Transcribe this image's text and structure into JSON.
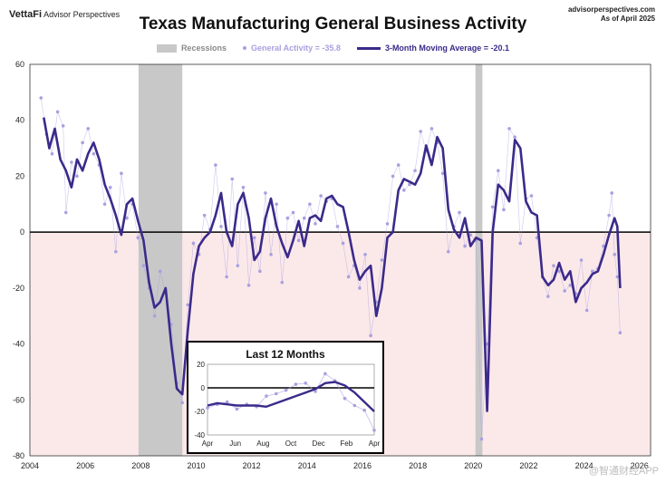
{
  "header": {
    "brand_name": "VettaFi",
    "brand_sub": "Advisor Perspectives",
    "source_line1": "advisorperspectives.com",
    "source_line2": "As of April 2025"
  },
  "watermark": "@智通财经APP",
  "colors": {
    "recession": "#c8c8c8",
    "line": "#3b2a8a",
    "dots": "#a9a0df",
    "negative_bg": "#fbe9ea"
  },
  "chart_data": {
    "type": "line",
    "title": "Texas Manufacturing General Business Activity",
    "legend": {
      "recession_label": "Recessions",
      "general_label": "General Activity = -35.8",
      "moving_avg_label": "3-Month Moving Average = -20.1"
    },
    "xlim": [
      2004,
      2026.4
    ],
    "ylim": [
      -80,
      60
    ],
    "x_ticks": [
      "2004",
      "2006",
      "2008",
      "2010",
      "2012",
      "2014",
      "2016",
      "2018",
      "2020",
      "2022",
      "2024",
      "2026"
    ],
    "y_ticks": [
      "60",
      "40",
      "20",
      "0",
      "-20",
      "-40",
      "-60",
      "-80"
    ],
    "recessions": [
      [
        2007.92,
        2009.5
      ],
      [
        2020.08,
        2020.33
      ]
    ],
    "moving_average": [
      [
        2004.5,
        41
      ],
      [
        2004.7,
        30
      ],
      [
        2004.9,
        37
      ],
      [
        2005.1,
        26
      ],
      [
        2005.3,
        22
      ],
      [
        2005.5,
        16
      ],
      [
        2005.7,
        26
      ],
      [
        2005.9,
        22
      ],
      [
        2006.1,
        28
      ],
      [
        2006.3,
        32
      ],
      [
        2006.5,
        26
      ],
      [
        2006.7,
        17
      ],
      [
        2006.9,
        12
      ],
      [
        2007.1,
        6
      ],
      [
        2007.3,
        -1
      ],
      [
        2007.5,
        10
      ],
      [
        2007.7,
        12
      ],
      [
        2007.9,
        4
      ],
      [
        2008.1,
        -3
      ],
      [
        2008.3,
        -18
      ],
      [
        2008.5,
        -27
      ],
      [
        2008.7,
        -25
      ],
      [
        2008.9,
        -20
      ],
      [
        2009.1,
        -40
      ],
      [
        2009.3,
        -56
      ],
      [
        2009.5,
        -58
      ],
      [
        2009.7,
        -35
      ],
      [
        2009.9,
        -15
      ],
      [
        2010.1,
        -5
      ],
      [
        2010.3,
        -2
      ],
      [
        2010.5,
        0
      ],
      [
        2010.7,
        6
      ],
      [
        2010.9,
        14
      ],
      [
        2011.1,
        0
      ],
      [
        2011.3,
        -5
      ],
      [
        2011.5,
        10
      ],
      [
        2011.7,
        14
      ],
      [
        2011.9,
        5
      ],
      [
        2012.1,
        -10
      ],
      [
        2012.3,
        -7
      ],
      [
        2012.5,
        5
      ],
      [
        2012.7,
        12
      ],
      [
        2012.9,
        2
      ],
      [
        2013.1,
        -4
      ],
      [
        2013.3,
        -9
      ],
      [
        2013.5,
        -3
      ],
      [
        2013.7,
        4
      ],
      [
        2013.9,
        -5
      ],
      [
        2014.1,
        5
      ],
      [
        2014.3,
        6
      ],
      [
        2014.5,
        4
      ],
      [
        2014.7,
        12
      ],
      [
        2014.9,
        13
      ],
      [
        2015.1,
        10
      ],
      [
        2015.3,
        9
      ],
      [
        2015.5,
        0
      ],
      [
        2015.7,
        -10
      ],
      [
        2015.9,
        -17
      ],
      [
        2016.1,
        -14
      ],
      [
        2016.3,
        -12
      ],
      [
        2016.5,
        -30
      ],
      [
        2016.7,
        -20
      ],
      [
        2016.9,
        -2
      ],
      [
        2017.1,
        0
      ],
      [
        2017.3,
        15
      ],
      [
        2017.5,
        19
      ],
      [
        2017.7,
        18
      ],
      [
        2017.9,
        17
      ],
      [
        2018.1,
        21
      ],
      [
        2018.3,
        31
      ],
      [
        2018.5,
        24
      ],
      [
        2018.7,
        34
      ],
      [
        2018.9,
        30
      ],
      [
        2019.1,
        8
      ],
      [
        2019.3,
        1
      ],
      [
        2019.5,
        -2
      ],
      [
        2019.7,
        5
      ],
      [
        2019.9,
        -5
      ],
      [
        2020.1,
        -2
      ],
      [
        2020.3,
        -3
      ],
      [
        2020.5,
        -64
      ],
      [
        2020.7,
        0
      ],
      [
        2020.9,
        17
      ],
      [
        2021.1,
        15
      ],
      [
        2021.3,
        11
      ],
      [
        2021.5,
        33
      ],
      [
        2021.7,
        30
      ],
      [
        2021.9,
        11
      ],
      [
        2022.1,
        7
      ],
      [
        2022.3,
        6
      ],
      [
        2022.5,
        -16
      ],
      [
        2022.7,
        -19
      ],
      [
        2022.9,
        -17
      ],
      [
        2023.1,
        -11
      ],
      [
        2023.3,
        -17
      ],
      [
        2023.5,
        -14
      ],
      [
        2023.7,
        -25
      ],
      [
        2023.9,
        -20
      ],
      [
        2024.1,
        -18
      ],
      [
        2024.3,
        -15
      ],
      [
        2024.5,
        -14
      ],
      [
        2024.7,
        -8
      ],
      [
        2024.9,
        -1
      ],
      [
        2025.1,
        5
      ],
      [
        2025.2,
        2
      ],
      [
        2025.3,
        -20
      ]
    ],
    "general_activity": [
      [
        2004.4,
        48
      ],
      [
        2004.6,
        35
      ],
      [
        2004.8,
        28
      ],
      [
        2005.0,
        43
      ],
      [
        2005.2,
        38
      ],
      [
        2005.3,
        7
      ],
      [
        2005.5,
        25
      ],
      [
        2005.7,
        20
      ],
      [
        2005.9,
        32
      ],
      [
        2006.1,
        37
      ],
      [
        2006.3,
        28
      ],
      [
        2006.5,
        24
      ],
      [
        2006.7,
        10
      ],
      [
        2006.9,
        16
      ],
      [
        2007.1,
        -7
      ],
      [
        2007.3,
        21
      ],
      [
        2007.5,
        5
      ],
      [
        2007.7,
        10
      ],
      [
        2007.9,
        -2
      ],
      [
        2008.1,
        -12
      ],
      [
        2008.3,
        -20
      ],
      [
        2008.5,
        -30
      ],
      [
        2008.7,
        -14
      ],
      [
        2008.9,
        -22
      ],
      [
        2009.1,
        -33
      ],
      [
        2009.3,
        -54
      ],
      [
        2009.5,
        -61
      ],
      [
        2009.7,
        -26
      ],
      [
        2009.9,
        -4
      ],
      [
        2010.1,
        -8
      ],
      [
        2010.3,
        6
      ],
      [
        2010.5,
        1
      ],
      [
        2010.7,
        24
      ],
      [
        2010.9,
        2
      ],
      [
        2011.1,
        -16
      ],
      [
        2011.3,
        19
      ],
      [
        2011.5,
        -12
      ],
      [
        2011.7,
        16
      ],
      [
        2011.9,
        -19
      ],
      [
        2012.1,
        -2
      ],
      [
        2012.3,
        -14
      ],
      [
        2012.5,
        14
      ],
      [
        2012.7,
        -8
      ],
      [
        2012.9,
        10
      ],
      [
        2013.1,
        -18
      ],
      [
        2013.3,
        5
      ],
      [
        2013.5,
        7
      ],
      [
        2013.7,
        -3
      ],
      [
        2013.9,
        5
      ],
      [
        2014.1,
        10
      ],
      [
        2014.3,
        3
      ],
      [
        2014.5,
        13
      ],
      [
        2014.7,
        11
      ],
      [
        2014.9,
        12
      ],
      [
        2015.1,
        2
      ],
      [
        2015.3,
        -4
      ],
      [
        2015.5,
        -16
      ],
      [
        2015.7,
        -12
      ],
      [
        2015.9,
        -20
      ],
      [
        2016.1,
        -8
      ],
      [
        2016.3,
        -37
      ],
      [
        2016.5,
        -25
      ],
      [
        2016.7,
        -10
      ],
      [
        2016.9,
        3
      ],
      [
        2017.1,
        20
      ],
      [
        2017.3,
        24
      ],
      [
        2017.5,
        15
      ],
      [
        2017.7,
        17
      ],
      [
        2017.9,
        22
      ],
      [
        2018.1,
        36
      ],
      [
        2018.3,
        29
      ],
      [
        2018.5,
        37
      ],
      [
        2018.7,
        32
      ],
      [
        2018.9,
        21
      ],
      [
        2019.1,
        -7
      ],
      [
        2019.3,
        2
      ],
      [
        2019.5,
        7
      ],
      [
        2019.7,
        -5
      ],
      [
        2019.9,
        -1
      ],
      [
        2020.1,
        -3
      ],
      [
        2020.3,
        -74
      ],
      [
        2020.5,
        -40
      ],
      [
        2020.7,
        9
      ],
      [
        2020.9,
        22
      ],
      [
        2021.1,
        8
      ],
      [
        2021.3,
        37
      ],
      [
        2021.5,
        34
      ],
      [
        2021.7,
        -4
      ],
      [
        2021.9,
        12
      ],
      [
        2022.1,
        13
      ],
      [
        2022.3,
        -2
      ],
      [
        2022.5,
        -16
      ],
      [
        2022.7,
        -23
      ],
      [
        2022.9,
        -12
      ],
      [
        2023.1,
        -14
      ],
      [
        2023.3,
        -21
      ],
      [
        2023.5,
        -19
      ],
      [
        2023.7,
        -22
      ],
      [
        2023.9,
        -10
      ],
      [
        2024.1,
        -28
      ],
      [
        2024.3,
        -14
      ],
      [
        2024.5,
        -13
      ],
      [
        2024.7,
        -5
      ],
      [
        2024.9,
        6
      ],
      [
        2025.0,
        14
      ],
      [
        2025.1,
        -8
      ],
      [
        2025.2,
        -16
      ],
      [
        2025.3,
        -36
      ]
    ],
    "inset": {
      "title": "Last 12 Months",
      "x_labels": [
        "Apr",
        "Jun",
        "Aug",
        "Oct",
        "Dec",
        "Feb",
        "Apr"
      ],
      "y_ticks": [
        "20",
        "0",
        "-20",
        "-40"
      ],
      "ylim": [
        -40,
        20
      ],
      "general_activity": [
        -17,
        -14,
        -12,
        -18,
        -14,
        -16,
        -7,
        -5,
        -2,
        3,
        4,
        -3,
        12,
        6,
        -9,
        -15,
        -19,
        -36
      ],
      "moving_average": [
        -15,
        -13,
        -14,
        -15,
        -15,
        -15,
        -16,
        -13,
        -10,
        -7,
        -4,
        -1,
        4,
        5,
        2,
        -4,
        -12,
        -20
      ]
    }
  }
}
